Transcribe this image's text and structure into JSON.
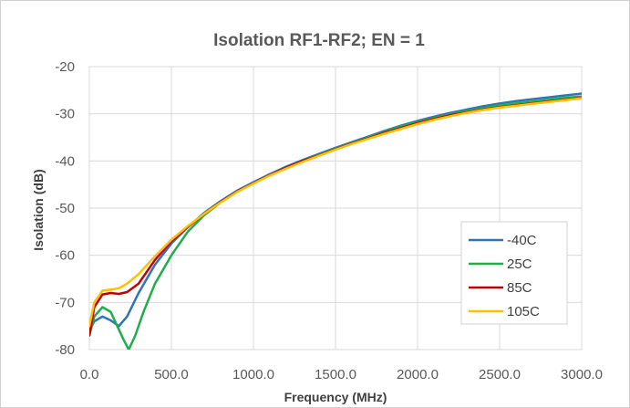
{
  "chart_data": {
    "type": "line",
    "title": "Isolation RF1-RF2; EN = 1",
    "xlabel": "Frequency (MHz)",
    "ylabel": "Isolation (dB)",
    "xlim": [
      0,
      3000
    ],
    "ylim": [
      -80,
      -20
    ],
    "x_ticks": [
      "0.0",
      "500.0",
      "1000.0",
      "1500.0",
      "2000.0",
      "2500.0",
      "3000.0"
    ],
    "y_ticks": [
      "-20",
      "-30",
      "-40",
      "-50",
      "-60",
      "-70",
      "-80"
    ],
    "grid": true,
    "legend_position": "bottom-right",
    "series": [
      {
        "name": "-40C",
        "color": "#2e75b6",
        "points": [
          [
            0,
            -76
          ],
          [
            30,
            -74
          ],
          [
            80,
            -73
          ],
          [
            130,
            -73.8
          ],
          [
            180,
            -75
          ],
          [
            230,
            -73
          ],
          [
            300,
            -68
          ],
          [
            400,
            -62
          ],
          [
            500,
            -57.5
          ],
          [
            600,
            -54
          ],
          [
            700,
            -51
          ],
          [
            800,
            -48.5
          ],
          [
            900,
            -46.3
          ],
          [
            1000,
            -44.5
          ],
          [
            1100,
            -42.8
          ],
          [
            1200,
            -41.2
          ],
          [
            1300,
            -39.8
          ],
          [
            1400,
            -38.5
          ],
          [
            1500,
            -37.2
          ],
          [
            1600,
            -36
          ],
          [
            1700,
            -34.8
          ],
          [
            1800,
            -33.6
          ],
          [
            1900,
            -32.5
          ],
          [
            2000,
            -31.5
          ],
          [
            2100,
            -30.6
          ],
          [
            2200,
            -29.8
          ],
          [
            2300,
            -29.1
          ],
          [
            2400,
            -28.4
          ],
          [
            2500,
            -27.8
          ],
          [
            2600,
            -27.3
          ],
          [
            2700,
            -26.9
          ],
          [
            2800,
            -26.5
          ],
          [
            2900,
            -26.1
          ],
          [
            3000,
            -25.7
          ]
        ]
      },
      {
        "name": "25C",
        "color": "#21ad4a",
        "points": [
          [
            0,
            -77
          ],
          [
            30,
            -73
          ],
          [
            80,
            -71
          ],
          [
            130,
            -72
          ],
          [
            170,
            -75
          ],
          [
            210,
            -78
          ],
          [
            240,
            -80
          ],
          [
            280,
            -77
          ],
          [
            330,
            -72
          ],
          [
            400,
            -66
          ],
          [
            500,
            -60
          ],
          [
            600,
            -55
          ],
          [
            700,
            -51.5
          ],
          [
            800,
            -48.8
          ],
          [
            900,
            -46.5
          ],
          [
            1000,
            -44.7
          ],
          [
            1100,
            -43
          ],
          [
            1200,
            -41.4
          ],
          [
            1300,
            -40
          ],
          [
            1400,
            -38.7
          ],
          [
            1500,
            -37.4
          ],
          [
            1600,
            -36.2
          ],
          [
            1700,
            -35
          ],
          [
            1800,
            -33.8
          ],
          [
            1900,
            -32.7
          ],
          [
            2000,
            -31.8
          ],
          [
            2100,
            -30.9
          ],
          [
            2200,
            -30.1
          ],
          [
            2300,
            -29.4
          ],
          [
            2400,
            -28.8
          ],
          [
            2500,
            -28.2
          ],
          [
            2600,
            -27.8
          ],
          [
            2700,
            -27.4
          ],
          [
            2800,
            -27
          ],
          [
            2900,
            -26.6
          ],
          [
            3000,
            -26.3
          ]
        ]
      },
      {
        "name": "85C",
        "color": "#c00000",
        "points": [
          [
            0,
            -77
          ],
          [
            30,
            -71
          ],
          [
            80,
            -68.3
          ],
          [
            130,
            -68
          ],
          [
            180,
            -68.2
          ],
          [
            230,
            -67.8
          ],
          [
            300,
            -66
          ],
          [
            400,
            -61
          ],
          [
            500,
            -57
          ],
          [
            600,
            -54
          ],
          [
            700,
            -51.2
          ],
          [
            800,
            -48.7
          ],
          [
            900,
            -46.5
          ],
          [
            1000,
            -44.7
          ],
          [
            1100,
            -43
          ],
          [
            1200,
            -41.4
          ],
          [
            1300,
            -40
          ],
          [
            1400,
            -38.8
          ],
          [
            1500,
            -37.5
          ],
          [
            1600,
            -36.3
          ],
          [
            1700,
            -35.2
          ],
          [
            1800,
            -34
          ],
          [
            1900,
            -33
          ],
          [
            2000,
            -32
          ],
          [
            2100,
            -31.1
          ],
          [
            2200,
            -30.3
          ],
          [
            2300,
            -29.7
          ],
          [
            2400,
            -29.1
          ],
          [
            2500,
            -28.6
          ],
          [
            2600,
            -28.2
          ],
          [
            2700,
            -27.8
          ],
          [
            2800,
            -27.4
          ],
          [
            2900,
            -27
          ],
          [
            3000,
            -26.6
          ]
        ]
      },
      {
        "name": "105C",
        "color": "#ffc000",
        "points": [
          [
            0,
            -75
          ],
          [
            30,
            -70
          ],
          [
            80,
            -67.5
          ],
          [
            130,
            -67.3
          ],
          [
            180,
            -67
          ],
          [
            230,
            -66
          ],
          [
            300,
            -64
          ],
          [
            400,
            -60.2
          ],
          [
            500,
            -56.7
          ],
          [
            600,
            -53.8
          ],
          [
            700,
            -51.2
          ],
          [
            800,
            -48.8
          ],
          [
            900,
            -46.6
          ],
          [
            1000,
            -44.8
          ],
          [
            1100,
            -43.1
          ],
          [
            1200,
            -41.6
          ],
          [
            1300,
            -40.2
          ],
          [
            1400,
            -38.9
          ],
          [
            1500,
            -37.6
          ],
          [
            1600,
            -36.4
          ],
          [
            1700,
            -35.3
          ],
          [
            1800,
            -34.2
          ],
          [
            1900,
            -33.2
          ],
          [
            2000,
            -32.2
          ],
          [
            2100,
            -31.3
          ],
          [
            2200,
            -30.5
          ],
          [
            2300,
            -29.8
          ],
          [
            2400,
            -29.2
          ],
          [
            2500,
            -28.7
          ],
          [
            2600,
            -28.3
          ],
          [
            2700,
            -27.9
          ],
          [
            2800,
            -27.5
          ],
          [
            2900,
            -27.1
          ],
          [
            3000,
            -26.7
          ]
        ]
      }
    ]
  }
}
